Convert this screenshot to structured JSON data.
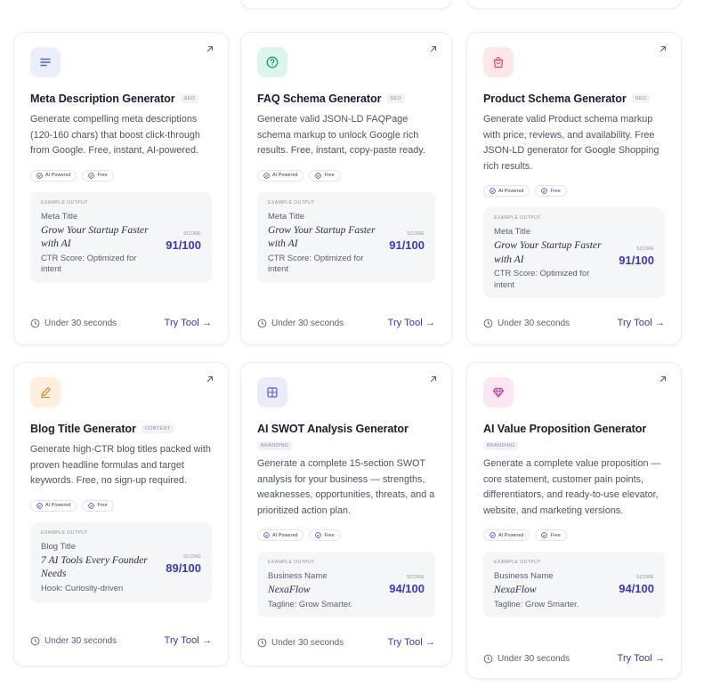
{
  "badges": {
    "ai_label": "AI Powered",
    "free_label": "Free"
  },
  "labels": {
    "example_output": "Example Output",
    "score": "Score",
    "time": "Under 30 seconds",
    "try": "Try Tool →"
  },
  "cards": [
    {
      "title": "Meta Description Generator",
      "category": "SEO",
      "icon": "list-lines-icon",
      "icon_bg": "#eceefb",
      "icon_fg": "#5b5fd1",
      "desc": "Generate compelling meta descriptions (120-160 chars) that boost click-through from Google. Free, instant, AI-powered.",
      "field": "Meta Title",
      "value": "Grow Your Startup Faster with AI",
      "note": "CTR Score: Optimized for intent",
      "score": "91/100"
    },
    {
      "title": "FAQ Schema Generator",
      "category": "SEO",
      "icon": "question-circle-icon",
      "icon_bg": "#dcf6ef",
      "icon_fg": "#1f9d7a",
      "desc": "Generate valid JSON-LD FAQPage schema markup to unlock Google rich results. Free, instant, copy-paste ready.",
      "field": "Meta Title",
      "value": "Grow Your Startup Faster with AI",
      "note": "CTR Score: Optimized for intent",
      "score": "91/100"
    },
    {
      "title": "Product Schema Generator",
      "category": "SEO",
      "icon": "shopping-bag-icon",
      "icon_bg": "#fde7ea",
      "icon_fg": "#d8465e",
      "desc": "Generate valid Product schema markup with price, reviews, and availability. Free JSON-LD generator for Google Shopping rich results.",
      "field": "Meta Title",
      "value": "Grow Your Startup Faster with AI",
      "note": "CTR Score: Optimized for intent",
      "score": "91/100"
    },
    {
      "title": "Blog Title Generator",
      "category": "Content",
      "icon": "pen-icon",
      "icon_bg": "#fdeedd",
      "icon_fg": "#d9822b",
      "desc": "Generate high-CTR blog titles packed with proven headline formulas and target keywords. Free, no sign-up required.",
      "field": "Blog Title",
      "value": "7 AI Tools Every Founder Needs",
      "note": "Hook: Curiosity-driven",
      "score": "89/100"
    },
    {
      "title": "AI SWOT Analysis Generator",
      "category": "Branding",
      "icon": "grid-icon",
      "icon_bg": "#ecebfb",
      "icon_fg": "#5b5fd1",
      "desc": "Generate a complete 15-section SWOT analysis for your business — strengths, weaknesses, opportunities, threats, and a prioritized action plan.",
      "field": "Business Name",
      "value": "NexaFlow",
      "note": "Tagline: Grow Smarter.",
      "score": "94/100"
    },
    {
      "title": "AI Value Proposition Generator",
      "category": "Branding",
      "icon": "diamond-icon",
      "icon_bg": "#fce6f1",
      "icon_fg": "#d63f8c",
      "desc": "Generate a complete value proposition — core statement, customer pain points, differentiators, and ready-to-use elevator, website, and marketing versions.",
      "field": "Business Name",
      "value": "NexaFlow",
      "note": "Tagline: Grow Smarter.",
      "score": "94/100"
    }
  ]
}
